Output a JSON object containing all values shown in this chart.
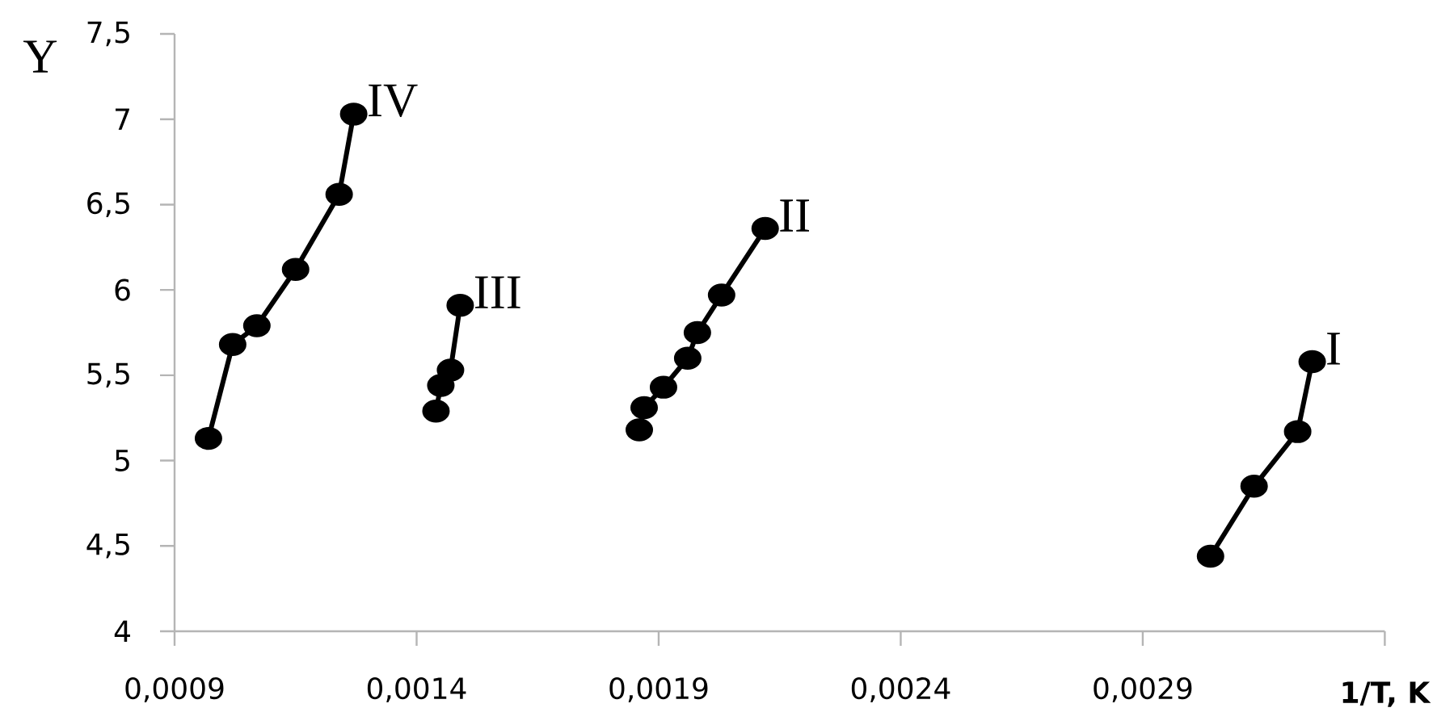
{
  "chart_data": {
    "type": "line",
    "xlabel": "1/T, K",
    "ylabel": "Y",
    "xlim": [
      0.0009,
      0.0034
    ],
    "xticks": [
      {
        "value": 0.0009,
        "label": "0,0009"
      },
      {
        "value": 0.0014,
        "label": "0,0014"
      },
      {
        "value": 0.0019,
        "label": "0,0019"
      },
      {
        "value": 0.0024,
        "label": "0,0024"
      },
      {
        "value": 0.0029,
        "label": "0,0029"
      },
      {
        "value": 0.0034,
        "label": null
      }
    ],
    "ylim": [
      4,
      7.5
    ],
    "yticks": [
      4,
      {
        "value": 4.5,
        "label": "4,5"
      },
      5,
      {
        "value": 5.5,
        "label": "5,5"
      },
      6,
      {
        "value": 6.5,
        "label": "6,5"
      },
      7,
      {
        "value": 7.5,
        "label": "7,5"
      }
    ],
    "marker": "circle",
    "line_style": "solid",
    "series": [
      {
        "name": "I",
        "color": "#000000",
        "x": [
          0.00304,
          0.00313,
          0.00322,
          0.00325
        ],
        "values": [
          4.44,
          4.85,
          5.17,
          5.58
        ]
      },
      {
        "name": "II",
        "color": "#000000",
        "x": [
          0.00186,
          0.00187,
          0.00191,
          0.00196,
          0.00198,
          0.00203,
          0.00212
        ],
        "values": [
          5.18,
          5.31,
          5.43,
          5.6,
          5.75,
          5.97,
          6.36
        ]
      },
      {
        "name": "III",
        "color": "#000000",
        "x": [
          0.00144,
          0.00145,
          0.00147,
          0.00149
        ],
        "values": [
          5.29,
          5.44,
          5.53,
          5.91
        ]
      },
      {
        "name": "IV",
        "color": "#000000",
        "x": [
          0.00097,
          0.00102,
          0.00107,
          0.00115,
          0.00124,
          0.00127
        ],
        "values": [
          5.13,
          5.68,
          5.79,
          6.12,
          6.56,
          7.03
        ]
      }
    ]
  }
}
